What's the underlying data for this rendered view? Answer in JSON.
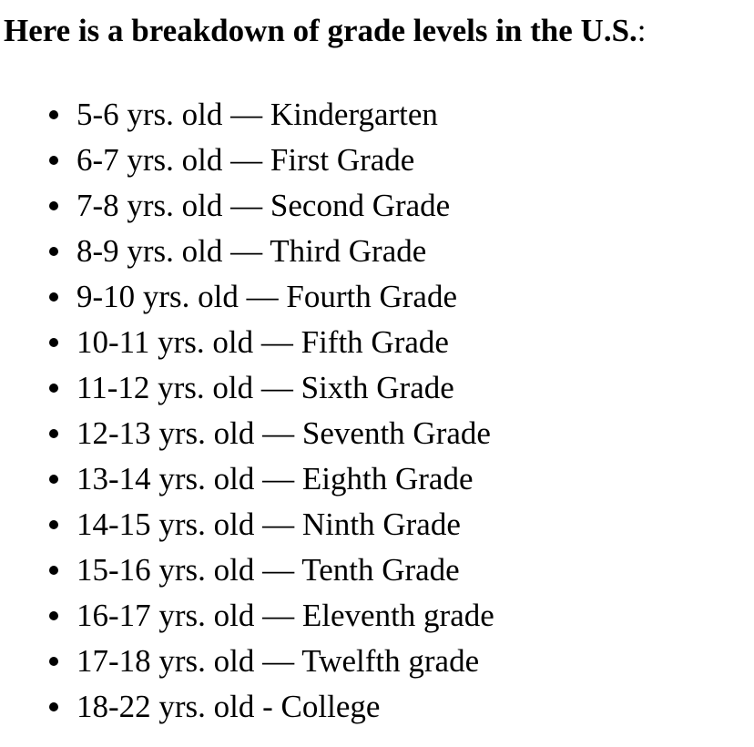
{
  "intro": {
    "bold_text": "Here is a breakdown of grade levels in the U.S.",
    "trailing": ":"
  },
  "grades": [
    "5-6 yrs. old — Kindergarten",
    "6-7 yrs. old — First Grade",
    "7-8 yrs. old — Second Grade",
    "8-9 yrs. old — Third Grade",
    "9-10 yrs. old — Fourth Grade",
    "10-11 yrs. old — Fifth Grade",
    "11-12 yrs. old — Sixth Grade",
    "12-13 yrs. old — Seventh Grade",
    "13-14 yrs. old — Eighth Grade",
    "14-15 yrs. old — Ninth Grade",
    "15-16 yrs. old — Tenth Grade",
    "16-17 yrs. old — Eleventh grade",
    "17-18 yrs. old — Twelfth grade",
    "18-22 yrs. old - College"
  ]
}
